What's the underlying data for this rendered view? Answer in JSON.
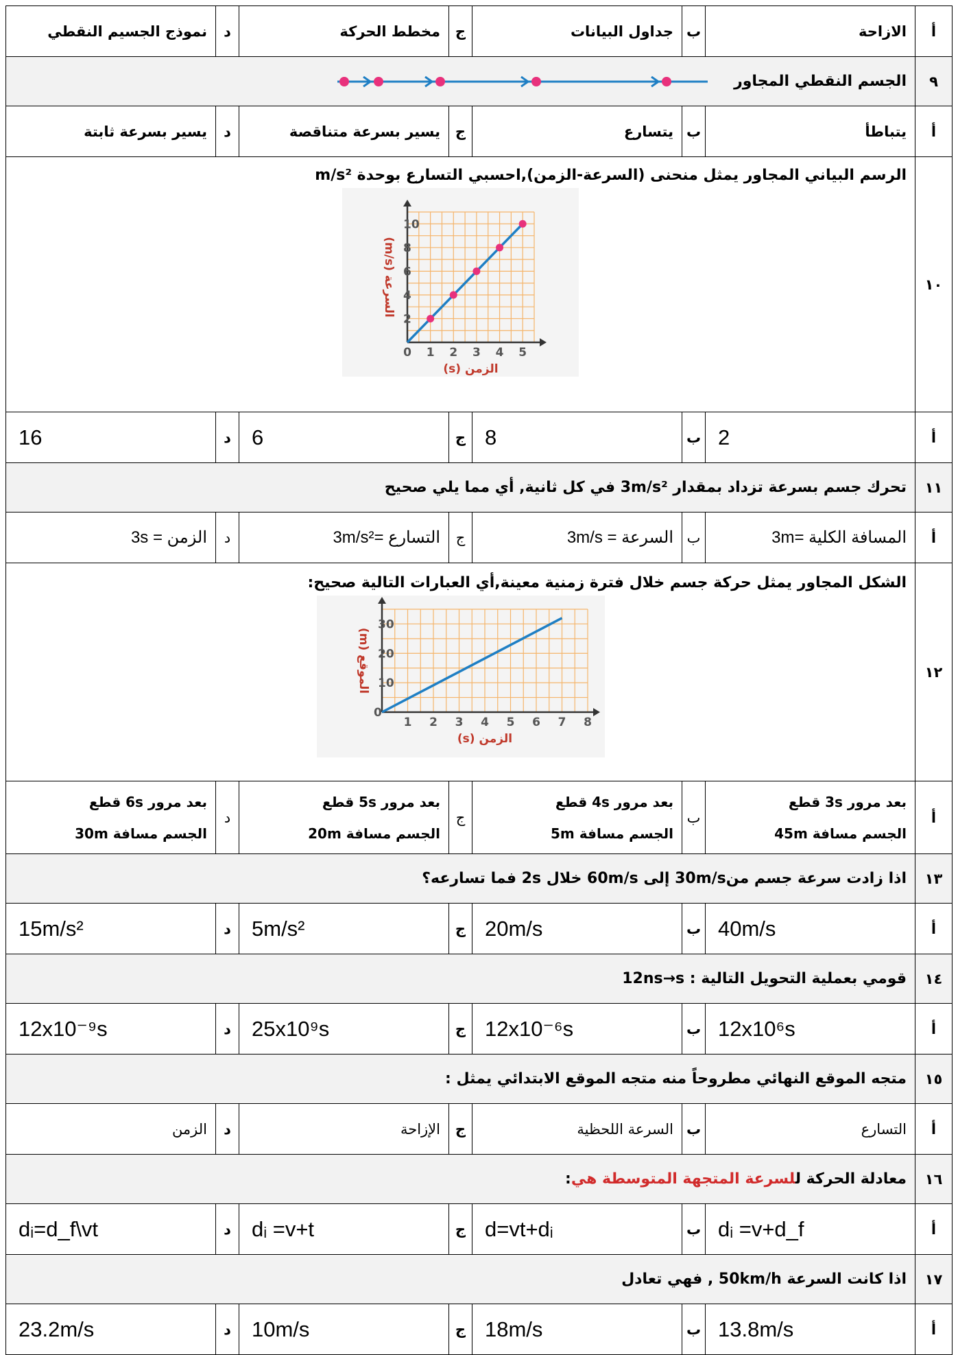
{
  "row_prev": {
    "a": "أ",
    "a_text": "الازاحة",
    "b": "ب",
    "b_text": "جداول البيانات",
    "c": "ج",
    "c_text": "مخطط الحركة",
    "d": "د",
    "d_text": "نموذج الجسيم النقطي"
  },
  "q9": {
    "num": "٩",
    "text": "الجسم النقطي المجاور"
  },
  "q9_opts": {
    "a": "أ",
    "a_text": "يتباطأ",
    "b": "ب",
    "b_text": "يتسارع",
    "c": "ج",
    "c_text": "يسير بسرعة متناقصة",
    "d": "د",
    "d_text": "يسير بسرعة ثابتة"
  },
  "q10": {
    "num": "١٠",
    "text": "الرسم البياني المجاور يمثل منحنى (السرعة-الزمن),احسبي التسارع بوحدة m/s²"
  },
  "q10_opts": {
    "a": "أ",
    "a_text": "2",
    "b": "ب",
    "b_text": "8",
    "c": "ج",
    "c_text": "6",
    "d": "د",
    "d_text": "16"
  },
  "q11": {
    "num": "١١",
    "text": "تحرك جسم بسرعة تزداد بمقدار 3m/s² في كل ثانية, أي مما يلي صحيح"
  },
  "q11_opts": {
    "a": "أ",
    "a_text": "المسافة الكلية =3m",
    "b": "ب",
    "b_text": "السرعة = 3m/s",
    "c": "ج",
    "c_text": "التسارع =3m/s²",
    "d": "د",
    "d_text": "الزمن = 3s"
  },
  "q12": {
    "num": "١٢",
    "text": "الشكل المجاور يمثل حركة جسم خلال فترة زمنية معينة,أي العبارات التالية صحيح:"
  },
  "q12_opts": {
    "a": "أ",
    "a_line1": "بعد مرور 3s قطع",
    "a_line2": "الجسم مسافة 45m",
    "b": "ب",
    "b_line1": "بعد مرور 4s قطع",
    "b_line2": "الجسم مسافة 5m",
    "c": "ج",
    "c_line1": "بعد مرور 5s قطع",
    "c_line2": "الجسم مسافة 20m",
    "d": "د",
    "d_line1": "بعد مرور 6s قطع",
    "d_line2": "الجسم مسافة 30m"
  },
  "q13": {
    "num": "١٣",
    "text": "اذا زادت سرعة جسم من30m/s إلى 60m/s خلال 2s فما تسارعه؟"
  },
  "q13_opts": {
    "a": "أ",
    "a_text": "40m/s",
    "b": "ب",
    "b_text": "20m/s",
    "c": "ج",
    "c_text": "5m/s²",
    "d": "د",
    "d_text": "15m/s²"
  },
  "q14": {
    "num": "١٤",
    "text": "قومي بعملية التحويل التالية : 12ns→s"
  },
  "q14_opts": {
    "a": "أ",
    "a_text": "12x10⁶s",
    "b": "ب",
    "b_text": "12x10⁻⁶s",
    "c": "ج",
    "c_text": "25x10⁹s",
    "d": "د",
    "d_text": "12x10⁻⁹s"
  },
  "q15": {
    "num": "١٥",
    "text": "متجه الموقع النهائي مطروحاً منه متجه الموقع الابتدائي يمثل :"
  },
  "q15_opts": {
    "a": "أ",
    "a_text": "التسارع",
    "b": "ب",
    "b_text": "السرعة اللحظية",
    "c": "ج",
    "c_text": "الإزاحة",
    "d": "د",
    "d_text": "الزمن"
  },
  "q16": {
    "num": "١٦",
    "text_pre": "معادلة الحركة ل",
    "text_red": "لسرعة المتجهة المتوسطة هي",
    "text_post": ":"
  },
  "q16_opts": {
    "a": "أ",
    "a_text": "dᵢ =v+d_f",
    "b": "ب",
    "b_text": "d=vt+dᵢ",
    "c": "ج",
    "c_text": "dᵢ =v+t",
    "d": "د",
    "d_text": "dᵢ=d_f\\vt"
  },
  "q17": {
    "num": "١٧",
    "text": "اذا كانت السرعة 50km/h , فهي تعادل"
  },
  "q17_opts": {
    "a": "أ",
    "a_text": "13.8m/s",
    "b": "ب",
    "b_text": "18m/s",
    "c": "ج",
    "c_text": "10m/s",
    "d": "د",
    "d_text": "23.2m/s"
  },
  "chart_data": [
    {
      "type": "line",
      "title": "",
      "xlabel": "الزمن (s)",
      "ylabel": "السرعة (m/s)",
      "x": [
        0,
        1,
        2,
        3,
        4,
        5
      ],
      "series": [
        {
          "values": [
            0,
            2,
            4,
            6,
            8,
            10
          ]
        }
      ],
      "xlim": [
        0,
        5.5
      ],
      "ylim": [
        0,
        11
      ],
      "xticks": [
        "0",
        "1",
        "2",
        "3",
        "4",
        "5"
      ],
      "yticks": [
        "2",
        "4",
        "6",
        "8",
        "10"
      ],
      "grid": true,
      "line_color": "#1f7fc4",
      "point_color": "#e8317c",
      "grid_color": "#f5b46a",
      "label_color": "#c0392b"
    },
    {
      "type": "line",
      "title": "",
      "xlabel": "الزمن (s)",
      "ylabel": "الموقع (m)",
      "x": [
        0,
        7
      ],
      "series": [
        {
          "values": [
            0,
            32
          ]
        }
      ],
      "xlim": [
        0,
        8
      ],
      "ylim": [
        0,
        35
      ],
      "xticks": [
        "1",
        "2",
        "3",
        "4",
        "5",
        "6",
        "7",
        "8"
      ],
      "yticks": [
        "10",
        "20",
        "30"
      ],
      "grid": true,
      "line_color": "#1f7fc4",
      "grid_color": "#f5b46a",
      "label_color": "#c0392b"
    }
  ]
}
